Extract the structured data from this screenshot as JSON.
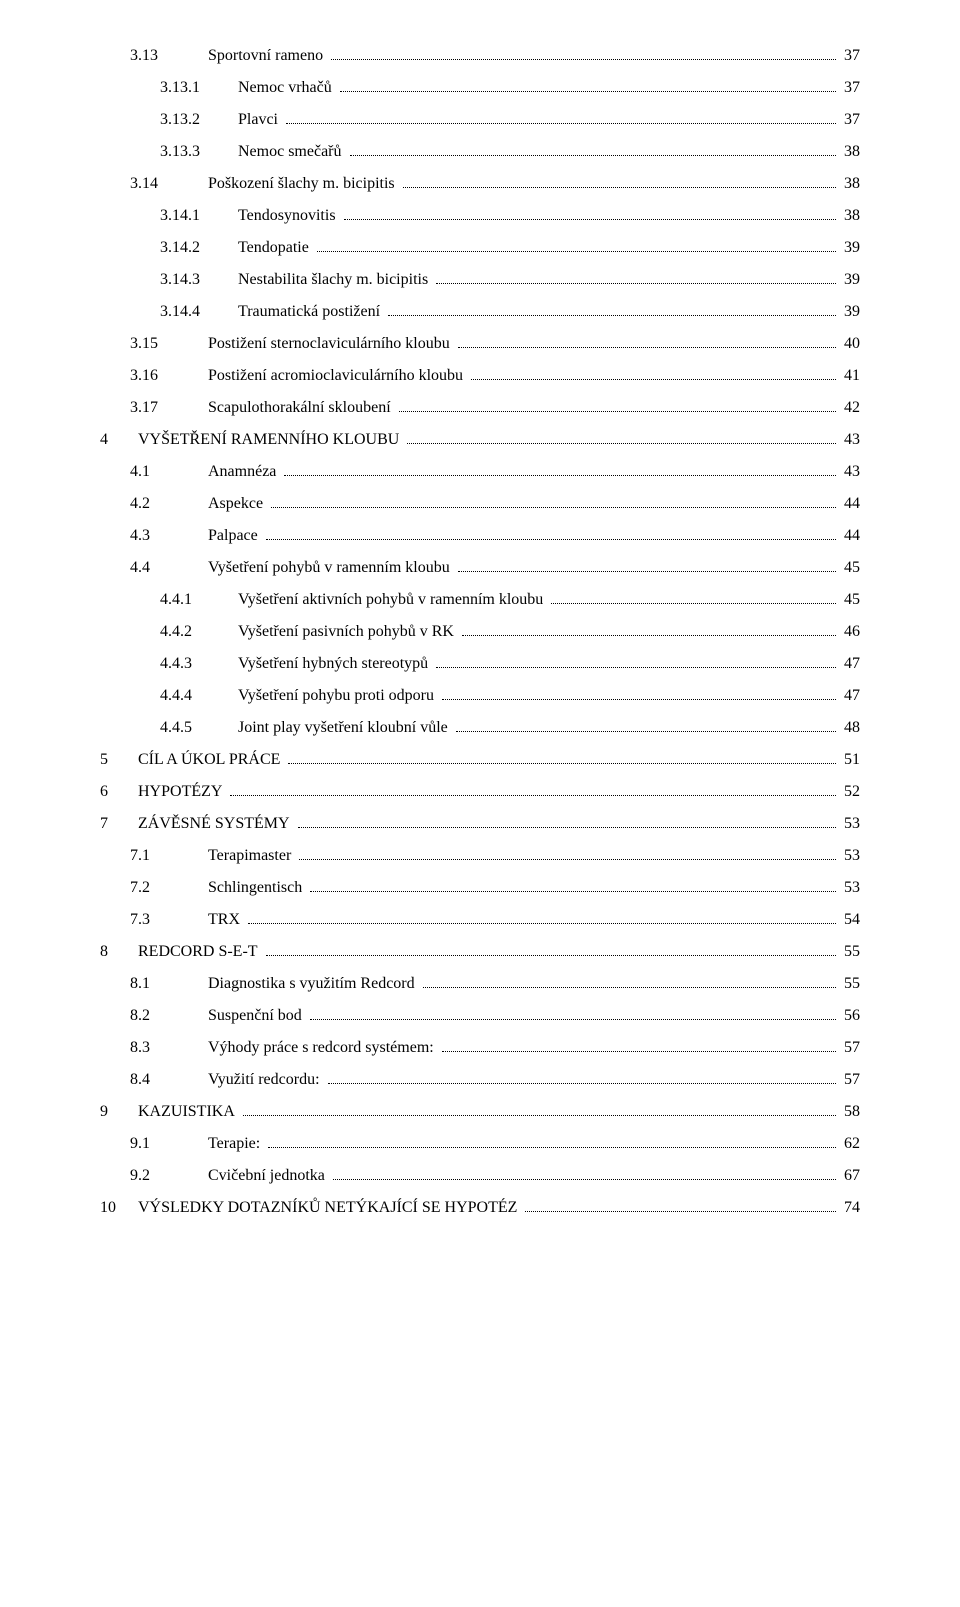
{
  "fontFamily": "Times New Roman",
  "fontSizePt": 12,
  "textColor": "#000000",
  "backgroundColor": "#ffffff",
  "dotLeaderColor": "#000000",
  "lineHeight": 2.0,
  "indentPxPerLevel": 30,
  "entries": [
    {
      "level": 2,
      "num": "3.13",
      "label": "Sportovní rameno",
      "page": "37"
    },
    {
      "level": 3,
      "num": "3.13.1",
      "label": "Nemoc vrhačů",
      "page": "37"
    },
    {
      "level": 3,
      "num": "3.13.2",
      "label": "Plavci",
      "page": "37"
    },
    {
      "level": 3,
      "num": "3.13.3",
      "label": "Nemoc smečařů",
      "page": "38"
    },
    {
      "level": 2,
      "num": "3.14",
      "label": "Poškození šlachy m. bicipitis",
      "page": "38"
    },
    {
      "level": 3,
      "num": "3.14.1",
      "label": "Tendosynovitis",
      "page": "38"
    },
    {
      "level": 3,
      "num": "3.14.2",
      "label": "Tendopatie",
      "page": "39"
    },
    {
      "level": 3,
      "num": "3.14.3",
      "label": "Nestabilita šlachy m. bicipitis",
      "page": "39"
    },
    {
      "level": 3,
      "num": "3.14.4",
      "label": "Traumatická postižení",
      "page": "39"
    },
    {
      "level": 2,
      "num": "3.15",
      "label": "Postižení sternoclaviculárního kloubu",
      "page": "40"
    },
    {
      "level": 2,
      "num": "3.16",
      "label": "Postižení acromioclaviculárního kloubu",
      "page": "41"
    },
    {
      "level": 2,
      "num": "3.17",
      "label": "Scapulothorakální skloubení",
      "page": "42"
    },
    {
      "level": 1,
      "num": "4",
      "label": "VYŠETŘENÍ RAMENNÍHO KLOUBU",
      "page": "43"
    },
    {
      "level": 2,
      "num": "4.1",
      "label": "Anamnéza",
      "page": "43"
    },
    {
      "level": 2,
      "num": "4.2",
      "label": "Aspekce",
      "page": "44"
    },
    {
      "level": 2,
      "num": "4.3",
      "label": "Palpace",
      "page": "44"
    },
    {
      "level": 2,
      "num": "4.4",
      "label": "Vyšetření pohybů v ramenním kloubu",
      "page": "45"
    },
    {
      "level": 3,
      "num": "4.4.1",
      "label": "Vyšetření aktivních pohybů v ramenním kloubu",
      "page": "45"
    },
    {
      "level": 3,
      "num": "4.4.2",
      "label": "Vyšetření pasivních pohybů v RK",
      "page": "46"
    },
    {
      "level": 3,
      "num": "4.4.3",
      "label": "Vyšetření hybných stereotypů",
      "page": "47"
    },
    {
      "level": 3,
      "num": "4.4.4",
      "label": "Vyšetření pohybu proti odporu",
      "page": "47"
    },
    {
      "level": 3,
      "num": "4.4.5",
      "label": "Joint play vyšetření kloubní vůle",
      "page": "48"
    },
    {
      "level": 1,
      "num": "5",
      "label": "CÍL A ÚKOL PRÁCE",
      "page": "51"
    },
    {
      "level": 1,
      "num": "6",
      "label": "HYPOTÉZY",
      "page": "52"
    },
    {
      "level": 1,
      "num": "7",
      "label": "ZÁVĚSNÉ SYSTÉMY",
      "page": "53"
    },
    {
      "level": 2,
      "num": "7.1",
      "label": "Terapimaster",
      "page": "53"
    },
    {
      "level": 2,
      "num": "7.2",
      "label": "Schlingentisch",
      "page": "53"
    },
    {
      "level": 2,
      "num": "7.3",
      "label": "TRX",
      "page": "54"
    },
    {
      "level": 1,
      "num": "8",
      "label": "REDCORD S-E-T",
      "page": "55"
    },
    {
      "level": 2,
      "num": "8.1",
      "label": "Diagnostika s využitím Redcord",
      "page": "55"
    },
    {
      "level": 2,
      "num": "8.2",
      "label": "Suspenční bod",
      "page": "56"
    },
    {
      "level": 2,
      "num": "8.3",
      "label": "Výhody práce s redcord systémem:",
      "page": "57"
    },
    {
      "level": 2,
      "num": "8.4",
      "label": "Využití redcordu:",
      "page": "57"
    },
    {
      "level": 1,
      "num": "9",
      "label": "KAZUISTIKA",
      "page": "58"
    },
    {
      "level": 2,
      "num": "9.1",
      "label": "Terapie:",
      "page": "62"
    },
    {
      "level": 2,
      "num": "9.2",
      "label": "Cvičební jednotka",
      "page": "67"
    },
    {
      "level": 1,
      "num": "10",
      "label": "VÝSLEDKY DOTAZNÍKŮ NETÝKAJÍCÍ SE HYPOTÉZ",
      "page": "74"
    }
  ]
}
